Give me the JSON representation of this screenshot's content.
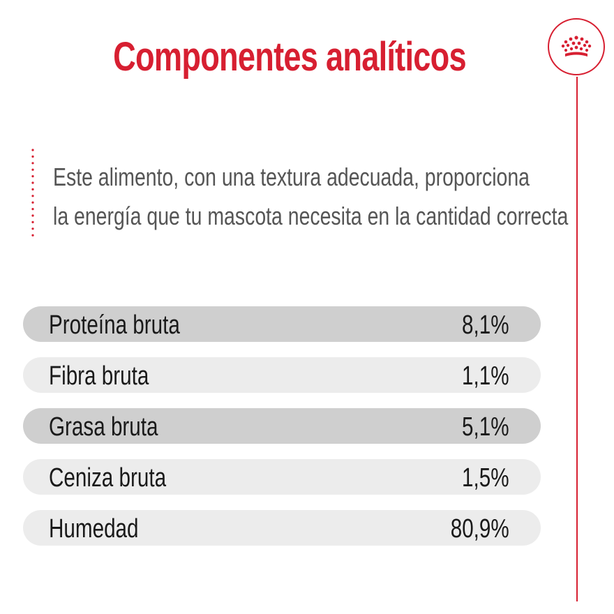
{
  "title": "Componentes analíticos",
  "description": {
    "line1": "Este alimento, con una textura adecuada, proporciona",
    "line2": "la energía que tu mascota necesita en la cantidad correcta"
  },
  "brand": {
    "logo_icon": "crown-icon",
    "accent_color": "#d71f31"
  },
  "row_colors": {
    "dark": "#cfcfcf",
    "light": "#ececec"
  },
  "components": [
    {
      "label": "Proteína bruta",
      "value": "8,1%",
      "shade": "dark"
    },
    {
      "label": "Fibra bruta",
      "value": "1,1%",
      "shade": "light"
    },
    {
      "label": "Grasa bruta",
      "value": "5,1%",
      "shade": "dark"
    },
    {
      "label": "Ceniza bruta",
      "value": "1,5%",
      "shade": "light"
    },
    {
      "label": "Humedad",
      "value": "80,9%",
      "shade": "light"
    }
  ]
}
